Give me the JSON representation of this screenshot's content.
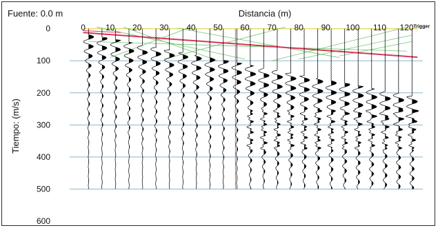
{
  "chart_data": {
    "type": "line",
    "title": "",
    "source_label": "Fuente: 0.0 m",
    "xlabel": "Distancia (m)",
    "ylabel": "Tiempo: (m/s)",
    "x_ticks": [
      0,
      10,
      20,
      30,
      40,
      50,
      60,
      70,
      80,
      90,
      100,
      110,
      120
    ],
    "y_ticks": [
      0,
      100,
      200,
      300,
      400,
      500,
      600
    ],
    "xlim": [
      -5,
      126
    ],
    "ylim": [
      600,
      -10
    ],
    "trace_offsets": [
      2,
      7,
      12,
      17,
      22,
      27,
      32,
      37,
      42,
      47,
      52,
      57,
      62,
      67,
      72,
      77,
      82,
      87,
      92,
      97,
      102,
      107,
      112,
      117,
      122
    ],
    "trace_end_time": 500,
    "trigger_label": "Trigger",
    "trigger_offset": 122,
    "grid": true,
    "colors": {
      "frame": "#2b2b2b",
      "gridline": "#8fb3c9",
      "topline": "#e8d96a",
      "picks": "#6cc76c",
      "firstbreak": "#d9365a",
      "marker": "#e06666",
      "trace": "#000000"
    }
  }
}
